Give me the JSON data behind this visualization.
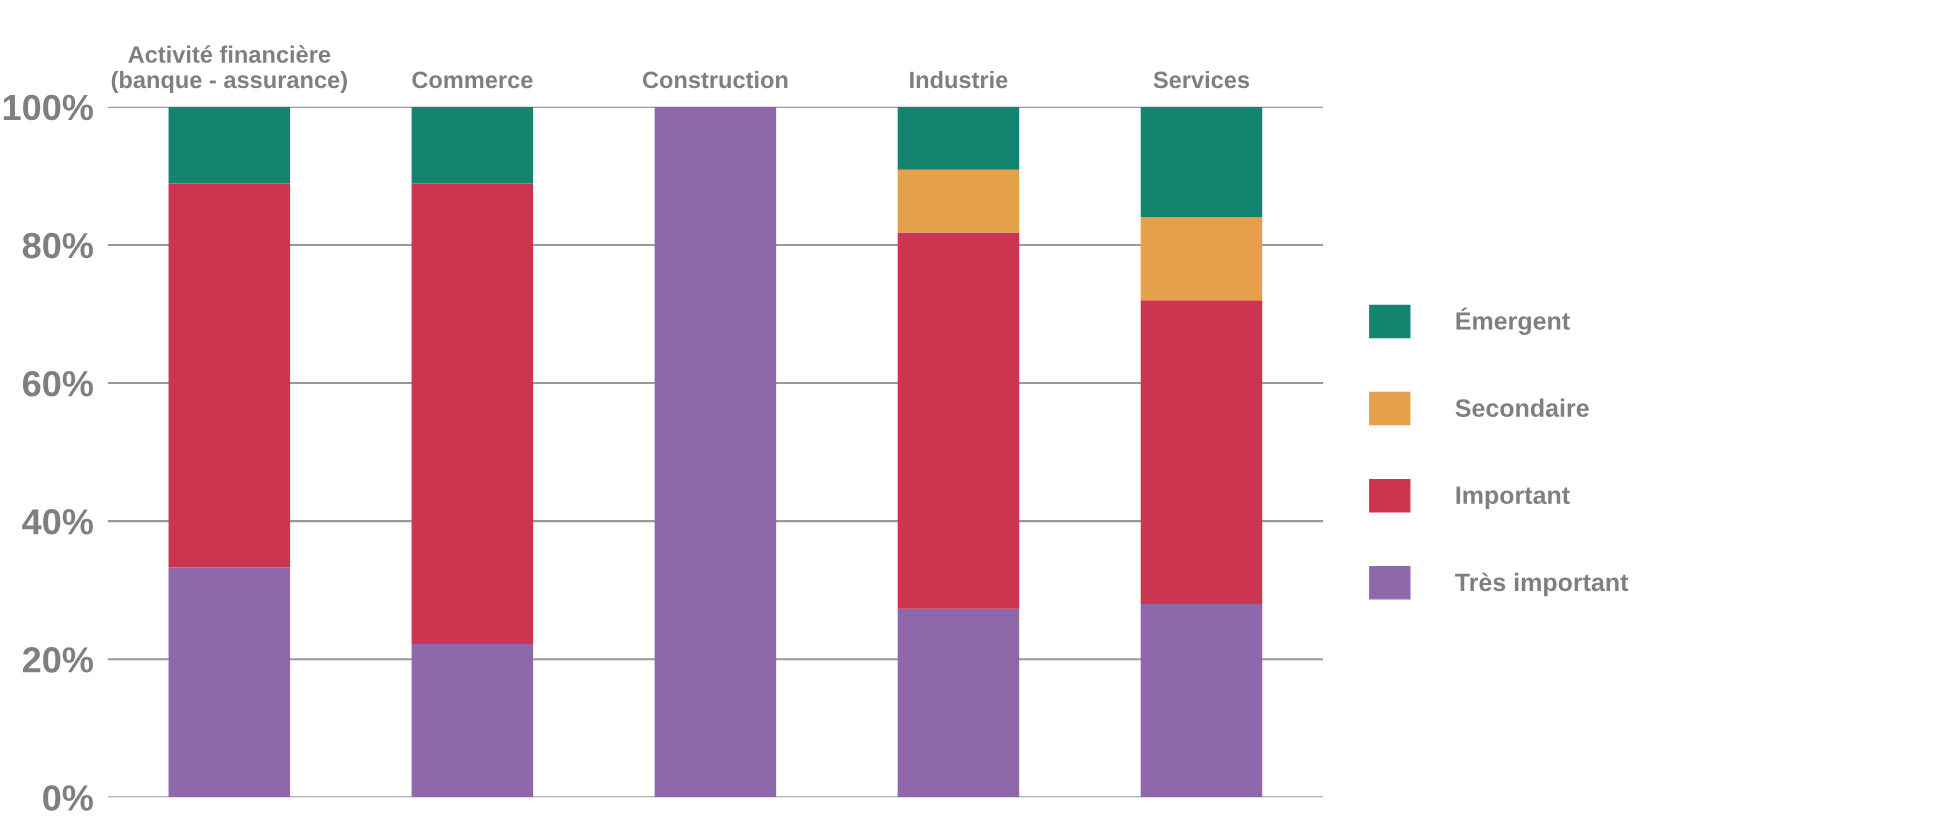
{
  "chart_data": {
    "type": "bar",
    "stacked": true,
    "categories": [
      "Activité financière\n(banque - assurance)",
      "Commerce",
      "Construction",
      "Industrie",
      "Services"
    ],
    "series": [
      {
        "name": "Très important",
        "color": "#8e68ab",
        "values": [
          33.3,
          22.2,
          100,
          27.3,
          28
        ]
      },
      {
        "name": "Important",
        "color": "#cb354f",
        "values": [
          55.6,
          66.7,
          0,
          54.5,
          44
        ]
      },
      {
        "name": "Secondaire",
        "color": "#e4a04a",
        "values": [
          0,
          0,
          0,
          9.1,
          12
        ]
      },
      {
        "name": "Émergent",
        "color": "#138470",
        "values": [
          11.1,
          11.1,
          0,
          9.1,
          16
        ]
      }
    ],
    "ylim": [
      0,
      100
    ],
    "yticks": [
      {
        "value": 0,
        "label": "0%"
      },
      {
        "value": 20,
        "label": "20%"
      },
      {
        "value": 40,
        "label": "40%"
      },
      {
        "value": 60,
        "label": "60%"
      },
      {
        "value": 80,
        "label": "80%"
      },
      {
        "value": 100,
        "label": "100%"
      }
    ],
    "grid": "y",
    "legend": "right"
  }
}
